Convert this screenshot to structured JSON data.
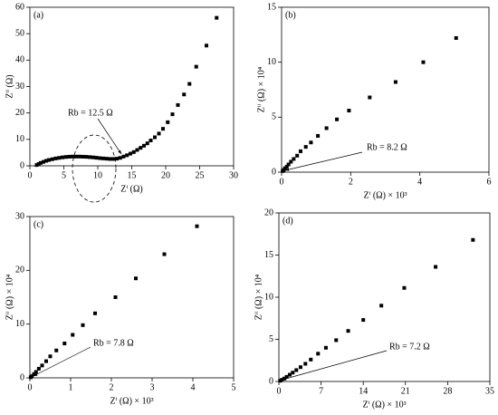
{
  "chart_data": [
    {
      "type": "scatter",
      "panel": "(a)",
      "xlabel": "Zⁱ (Ω)",
      "ylabel": "Zⁱⁱ (Ω)",
      "annotation": "Rb = 12.5 Ω",
      "color": "#000000",
      "x": [
        1,
        1.3,
        1.6,
        2,
        2.4,
        2.8,
        3.3,
        3.8,
        4.3,
        4.8,
        5.3,
        5.8,
        6.3,
        6.8,
        7.3,
        7.8,
        8.3,
        8.8,
        9.3,
        9.8,
        10.3,
        10.8,
        11.3,
        11.8,
        12.3,
        12.8,
        13.3,
        13.8,
        14.3,
        14.8,
        15.3,
        15.8,
        16.3,
        16.8,
        17.3,
        17.8,
        18.4,
        19,
        19.6,
        20.3,
        21,
        21.8,
        22.7,
        23.5,
        24.5,
        26,
        27.5
      ],
      "y": [
        0.3,
        0.7,
        1.1,
        1.5,
        1.9,
        2.2,
        2.5,
        2.8,
        3.0,
        3.2,
        3.35,
        3.45,
        3.5,
        3.5,
        3.5,
        3.45,
        3.4,
        3.3,
        3.2,
        3.05,
        2.9,
        2.8,
        2.7,
        2.6,
        2.6,
        2.7,
        3.0,
        3.5,
        4.0,
        4.6,
        5.2,
        6.0,
        6.8,
        7.6,
        8.5,
        9.6,
        10.8,
        12.2,
        14,
        16.5,
        19.5,
        23,
        27,
        31,
        37.5,
        45.5,
        56
      ],
      "xlim": [
        0,
        30
      ],
      "xticks": [
        0,
        5,
        10,
        15,
        20,
        25,
        30
      ],
      "ylim": [
        0,
        60
      ],
      "yticks": [
        0,
        10,
        20,
        30,
        40,
        50,
        60
      ]
    },
    {
      "type": "scatter",
      "panel": "(b)",
      "xlabel": "Zⁱ (Ω) × 10³",
      "ylabel": "Zⁱⁱ (Ω) × 10⁴",
      "annotation": "Rb = 8.2 Ω",
      "color": "#000000",
      "x": [
        0.03,
        0.06,
        0.1,
        0.15,
        0.2,
        0.27,
        0.35,
        0.45,
        0.55,
        0.7,
        0.85,
        1.05,
        1.3,
        1.6,
        1.95,
        2.55,
        3.3,
        4.1,
        5.05
      ],
      "y": [
        0.1,
        0.2,
        0.35,
        0.5,
        0.7,
        0.95,
        1.2,
        1.5,
        1.9,
        2.3,
        2.7,
        3.3,
        4.0,
        4.8,
        5.6,
        6.8,
        8.2,
        10,
        12.2
      ],
      "xlim": [
        0,
        6
      ],
      "xticks": [
        0,
        2,
        4,
        6
      ],
      "ylim": [
        0,
        15
      ],
      "yticks": [
        0,
        5,
        10,
        15
      ]
    },
    {
      "type": "scatter",
      "panel": "(c)",
      "xlabel": "Zⁱ (Ω) × 10³",
      "ylabel": "Zⁱⁱ (Ω) × 10⁴",
      "annotation": "Rb = 7.8 Ω",
      "color": "#000000",
      "x": [
        0.02,
        0.05,
        0.1,
        0.15,
        0.22,
        0.3,
        0.4,
        0.5,
        0.65,
        0.85,
        1.05,
        1.3,
        1.6,
        2.1,
        2.6,
        3.3,
        4.1
      ],
      "y": [
        0.1,
        0.3,
        0.7,
        1.1,
        1.7,
        2.3,
        3.1,
        4,
        5.1,
        6.4,
        8,
        9.8,
        12,
        15,
        18.5,
        23,
        28.2
      ],
      "xlim": [
        0,
        5
      ],
      "xticks": [
        0,
        1,
        2,
        3,
        4,
        5
      ],
      "ylim": [
        0,
        30
      ],
      "yticks": [
        0,
        10,
        20,
        30
      ]
    },
    {
      "type": "scatter",
      "panel": "(d)",
      "xlabel": "Zⁱ (Ω) × 10³",
      "ylabel": "Zⁱⁱ (Ω) × 10⁴",
      "annotation": "Rb = 7.2 Ω",
      "color": "#000000",
      "x": [
        0.2,
        0.5,
        0.9,
        1.3,
        1.8,
        2.3,
        2.9,
        3.6,
        4.4,
        5.3,
        6.5,
        7.8,
        9.5,
        11.5,
        14,
        17,
        20.8,
        26,
        32.2
      ],
      "y": [
        0.08,
        0.2,
        0.35,
        0.55,
        0.8,
        1.05,
        1.35,
        1.7,
        2.1,
        2.6,
        3.3,
        4,
        4.9,
        6,
        7.3,
        9,
        11.1,
        13.6,
        16.8
      ],
      "xlim": [
        0,
        35
      ],
      "xticks": [
        0,
        7,
        14,
        21,
        28,
        35
      ],
      "ylim": [
        0,
        20
      ],
      "yticks": [
        0,
        5,
        10,
        15,
        20
      ]
    }
  ]
}
